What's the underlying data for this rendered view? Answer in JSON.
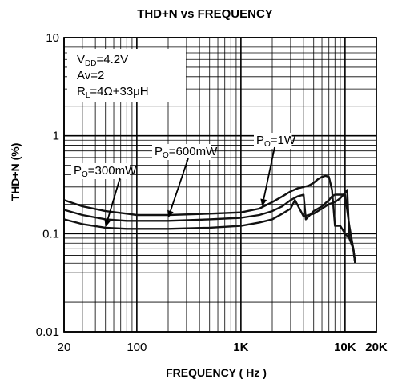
{
  "chart_data": {
    "type": "line",
    "title": "THD+N vs FREQUENCY",
    "xlabel": "FREQUENCY ( Hz )",
    "ylabel": "THD+N (%)",
    "x_scale": "log",
    "y_scale": "log",
    "xlim": [
      20,
      20000
    ],
    "ylim": [
      0.01,
      10
    ],
    "grid": true,
    "x_ticks": [
      {
        "value": 20,
        "label": "20"
      },
      {
        "value": 100,
        "label": "100"
      },
      {
        "value": 1000,
        "label": "1K"
      },
      {
        "value": 10000,
        "label": "10K"
      },
      {
        "value": 20000,
        "label": "20K"
      }
    ],
    "y_ticks": [
      {
        "value": 10,
        "label": "10"
      },
      {
        "value": 1,
        "label": "1"
      },
      {
        "value": 0.1,
        "label": "0.1"
      },
      {
        "value": 0.01,
        "label": "0.01"
      }
    ],
    "conditions": [
      {
        "main": "V",
        "sub": "DD",
        "rest": "=4.2V"
      },
      {
        "main": "Av=2",
        "sub": "",
        "rest": ""
      },
      {
        "main": "R",
        "sub": "L",
        "rest": "=4Ω+33μH"
      }
    ],
    "series": [
      {
        "name": "PO=1W",
        "label": {
          "main": "P",
          "sub": "O",
          "rest": "=1W"
        },
        "x": [
          20,
          30,
          50,
          80,
          100,
          200,
          500,
          1000,
          1500,
          2000,
          2500,
          3000,
          3500,
          4000,
          4500,
          5000,
          5500,
          6000,
          6500,
          7000,
          7500,
          8000,
          9000,
          10000,
          11000,
          12000,
          12500
        ],
        "y": [
          0.22,
          0.19,
          0.17,
          0.16,
          0.155,
          0.155,
          0.16,
          0.165,
          0.18,
          0.21,
          0.24,
          0.27,
          0.29,
          0.3,
          0.31,
          0.33,
          0.36,
          0.38,
          0.39,
          0.38,
          0.28,
          0.12,
          0.12,
          0.1,
          0.09,
          0.07,
          0.05
        ]
      },
      {
        "name": "PO=600mW",
        "label": {
          "main": "P",
          "sub": "O",
          "rest": "=600mW"
        },
        "x": [
          20,
          30,
          50,
          80,
          100,
          200,
          500,
          1000,
          1500,
          2000,
          2500,
          3000,
          3500,
          4000,
          4200,
          5000,
          6000,
          7000,
          7500,
          8000,
          9000,
          10000,
          11000,
          12000,
          12500
        ],
        "y": [
          0.175,
          0.155,
          0.14,
          0.135,
          0.135,
          0.135,
          0.14,
          0.145,
          0.155,
          0.17,
          0.19,
          0.22,
          0.24,
          0.25,
          0.14,
          0.17,
          0.19,
          0.22,
          0.24,
          0.25,
          0.25,
          0.25,
          0.12,
          0.07,
          0.05
        ]
      },
      {
        "name": "PO=300mW",
        "label": {
          "main": "P",
          "sub": "O",
          "rest": "=300mW"
        },
        "x": [
          20,
          30,
          50,
          80,
          100,
          200,
          500,
          1000,
          1500,
          2000,
          2500,
          3000,
          3300,
          4000,
          5000,
          6000,
          7000,
          8000,
          9000,
          10000,
          10500,
          11000,
          12000,
          12500
        ],
        "y": [
          0.14,
          0.125,
          0.115,
          0.112,
          0.112,
          0.112,
          0.115,
          0.12,
          0.13,
          0.14,
          0.16,
          0.18,
          0.22,
          0.15,
          0.16,
          0.18,
          0.2,
          0.21,
          0.23,
          0.26,
          0.28,
          0.09,
          0.07,
          0.05
        ]
      }
    ]
  }
}
